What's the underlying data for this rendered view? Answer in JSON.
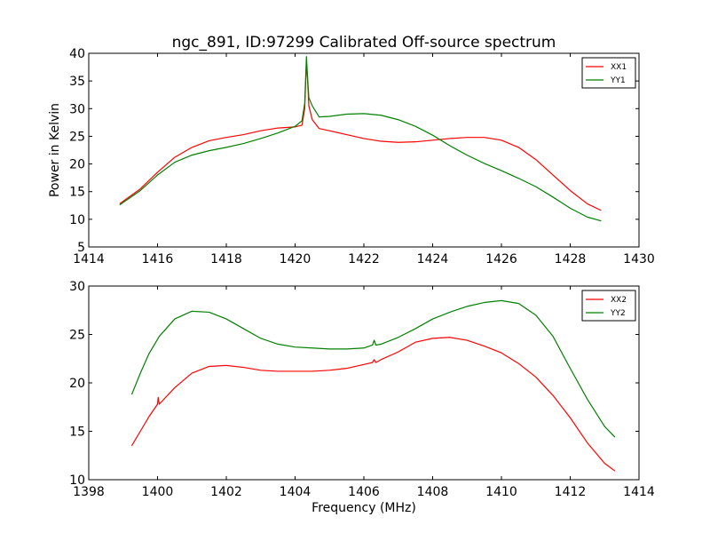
{
  "figure_title": "ngc_891, ID:97299 Calibrated Off-source spectrum",
  "colors": {
    "xx": "#ff0000",
    "yy": "#008000",
    "frame": "#000000"
  },
  "chart_data": [
    {
      "type": "line",
      "title": "ngc_891, ID:97299 Calibrated Off-source spectrum",
      "xlabel": "",
      "ylabel": "Power in Kelvin",
      "xlim": [
        1414,
        1430
      ],
      "ylim": [
        5,
        40
      ],
      "xticks": [
        "1414",
        "1416",
        "1418",
        "1420",
        "1422",
        "1424",
        "1426",
        "1428",
        "1430"
      ],
      "yticks": [
        "5",
        "10",
        "15",
        "20",
        "25",
        "30",
        "35",
        "40"
      ],
      "legend": "top-right",
      "series": [
        {
          "name": "XX1",
          "color": "#ff0000",
          "x": [
            1414.9,
            1415.5,
            1416.0,
            1416.5,
            1417.0,
            1417.5,
            1418.0,
            1418.5,
            1419.0,
            1419.5,
            1420.0,
            1420.2,
            1420.28,
            1420.33,
            1420.36,
            1420.4,
            1420.5,
            1420.7,
            1421.0,
            1421.5,
            1422.0,
            1422.5,
            1423.0,
            1423.5,
            1424.0,
            1424.5,
            1425.0,
            1425.5,
            1426.0,
            1426.5,
            1427.0,
            1427.5,
            1428.0,
            1428.5,
            1428.9
          ],
          "y": [
            12.8,
            15.5,
            18.5,
            21.2,
            23.0,
            24.2,
            24.8,
            25.3,
            26.0,
            26.5,
            26.7,
            27.0,
            30.0,
            38.5,
            35.5,
            30.5,
            28.0,
            26.4,
            26.0,
            25.3,
            24.6,
            24.1,
            23.9,
            24.0,
            24.3,
            24.6,
            24.8,
            24.8,
            24.3,
            23.0,
            20.8,
            18.0,
            15.2,
            12.8,
            11.6
          ]
        },
        {
          "name": "YY1",
          "color": "#008000",
          "x": [
            1414.9,
            1415.5,
            1416.0,
            1416.5,
            1417.0,
            1417.5,
            1418.0,
            1418.5,
            1419.0,
            1419.5,
            1420.0,
            1420.2,
            1420.28,
            1420.33,
            1420.36,
            1420.4,
            1420.5,
            1420.7,
            1421.0,
            1421.5,
            1422.0,
            1422.5,
            1423.0,
            1423.5,
            1424.0,
            1424.5,
            1425.0,
            1425.5,
            1426.0,
            1426.5,
            1427.0,
            1427.5,
            1428.0,
            1428.5,
            1428.9
          ],
          "y": [
            12.6,
            15.2,
            18.0,
            20.3,
            21.6,
            22.4,
            23.0,
            23.7,
            24.6,
            25.6,
            26.8,
            27.8,
            31.0,
            39.4,
            36.0,
            32.0,
            30.5,
            28.5,
            28.6,
            29.0,
            29.1,
            28.8,
            28.0,
            26.8,
            25.2,
            23.3,
            21.6,
            20.1,
            18.8,
            17.4,
            15.9,
            14.0,
            12.0,
            10.4,
            9.7
          ]
        }
      ]
    },
    {
      "type": "line",
      "title": "",
      "xlabel": "Frequency (MHz)",
      "ylabel": "",
      "xlim": [
        1398,
        1414
      ],
      "ylim": [
        10,
        30
      ],
      "xticks": [
        "1398",
        "1400",
        "1402",
        "1404",
        "1406",
        "1408",
        "1410",
        "1412",
        "1414"
      ],
      "yticks": [
        "10",
        "15",
        "20",
        "25",
        "30"
      ],
      "legend": "top-right",
      "series": [
        {
          "name": "XX2",
          "color": "#ff0000",
          "x": [
            1399.25,
            1399.5,
            1399.75,
            1400.0,
            1400.02,
            1400.05,
            1400.5,
            1401.0,
            1401.5,
            1402.0,
            1402.5,
            1403.0,
            1403.5,
            1404.0,
            1404.5,
            1405.0,
            1405.5,
            1406.0,
            1406.25,
            1406.3,
            1406.35,
            1406.5,
            1407.0,
            1407.5,
            1408.0,
            1408.5,
            1409.0,
            1409.5,
            1410.0,
            1410.5,
            1411.0,
            1411.5,
            1412.0,
            1412.5,
            1413.0,
            1413.3
          ],
          "y": [
            13.5,
            15.0,
            16.5,
            17.8,
            18.5,
            17.8,
            19.5,
            21.0,
            21.7,
            21.8,
            21.6,
            21.3,
            21.2,
            21.2,
            21.2,
            21.3,
            21.5,
            21.9,
            22.1,
            22.4,
            22.1,
            22.4,
            23.2,
            24.2,
            24.6,
            24.7,
            24.4,
            23.8,
            23.1,
            22.0,
            20.6,
            18.7,
            16.4,
            13.8,
            11.7,
            10.9
          ]
        },
        {
          "name": "YY2",
          "color": "#008000",
          "x": [
            1399.25,
            1399.5,
            1399.75,
            1400.0,
            1400.05,
            1400.5,
            1401.0,
            1401.5,
            1402.0,
            1402.5,
            1403.0,
            1403.5,
            1404.0,
            1404.5,
            1405.0,
            1405.5,
            1406.0,
            1406.25,
            1406.3,
            1406.35,
            1406.5,
            1407.0,
            1407.5,
            1408.0,
            1408.5,
            1409.0,
            1409.5,
            1410.0,
            1410.5,
            1411.0,
            1411.5,
            1412.0,
            1412.5,
            1413.0,
            1413.3
          ],
          "y": [
            18.8,
            21.0,
            23.0,
            24.5,
            24.8,
            26.6,
            27.4,
            27.3,
            26.6,
            25.6,
            24.6,
            24.0,
            23.7,
            23.6,
            23.5,
            23.5,
            23.6,
            23.9,
            24.4,
            23.9,
            24.0,
            24.7,
            25.6,
            26.6,
            27.3,
            27.9,
            28.3,
            28.5,
            28.2,
            27.0,
            24.8,
            21.5,
            18.3,
            15.5,
            14.4
          ]
        }
      ]
    }
  ]
}
